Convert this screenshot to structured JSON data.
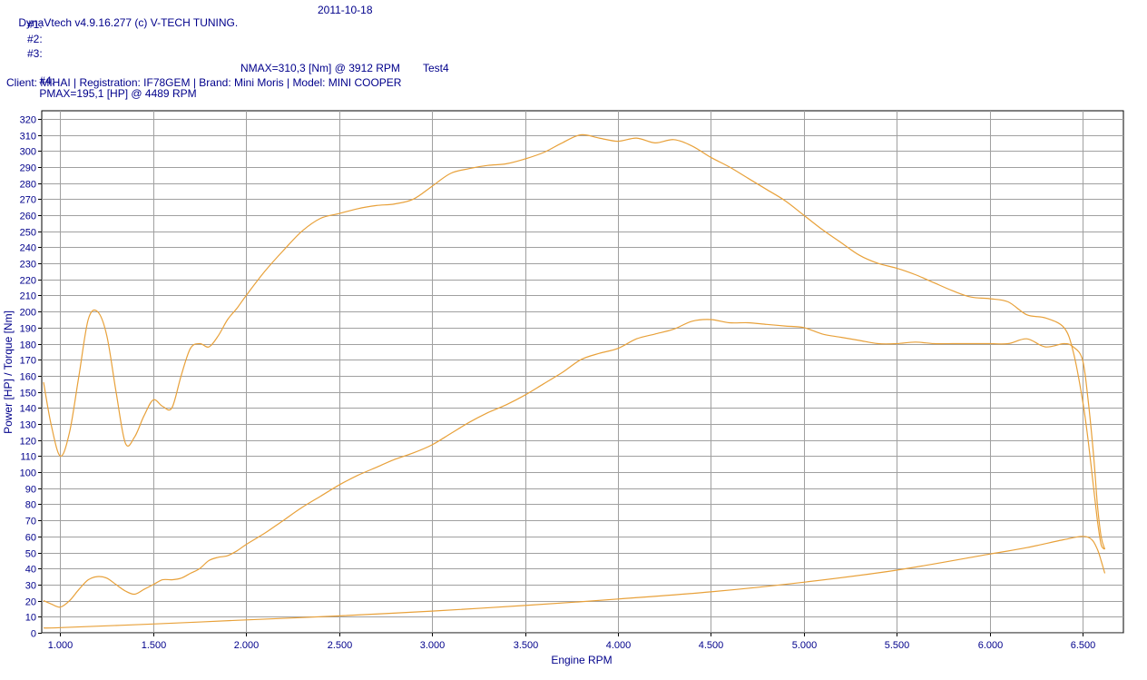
{
  "header": {
    "app_title": "DynaVtech v4.9.16.277 (c) V-TECH TUNING.",
    "date": "2011-10-18",
    "run1": "#1:",
    "run2": "#2:",
    "run3": "#3:",
    "run4_label": "#4:",
    "run4_pmax": "PMAX=195,1 [HP] @ 4489 RPM",
    "run4_nmax": "NMAX=310,3 [Nm] @ 3912 RPM",
    "run4_test": "Test4",
    "client_line": "Client: MIHAI | Registration: IF78GEM | Brand: Mini Moris | Model: MINI COOPER"
  },
  "chart_data": {
    "type": "line",
    "xlabel": "Engine RPM",
    "ylabel": "Power [HP] / Torque [Nm]",
    "xlim": [
      900,
      6720
    ],
    "ylim": [
      0,
      325
    ],
    "x_ticks": [
      1000,
      1500,
      2000,
      2500,
      3000,
      3500,
      4000,
      4500,
      5000,
      5500,
      6000,
      6500
    ],
    "x_tick_labels": [
      "1.000",
      "1.500",
      "2.000",
      "2.500",
      "3.000",
      "3.500",
      "4.000",
      "4.500",
      "5.000",
      "5.500",
      "6.000",
      "6.500"
    ],
    "y_ticks": [
      0,
      10,
      20,
      30,
      40,
      50,
      60,
      70,
      80,
      90,
      100,
      110,
      120,
      130,
      140,
      150,
      160,
      170,
      180,
      190,
      200,
      210,
      220,
      230,
      240,
      250,
      260,
      270,
      280,
      290,
      300,
      310,
      320
    ],
    "grid": true,
    "line_color": "#e8a13a",
    "series": [
      {
        "x": [
          910,
          950,
          1000,
          1050,
          1100,
          1150,
          1200,
          1250,
          1300,
          1350,
          1400,
          1450,
          1500,
          1550,
          1600,
          1650,
          1700,
          1750,
          1800,
          1850,
          1900,
          1950,
          2000,
          2100,
          2200,
          2300,
          2400,
          2500,
          2600,
          2700,
          2800,
          2900,
          3000,
          3100,
          3200,
          3300,
          3400,
          3500,
          3600,
          3700,
          3800,
          3900,
          4000,
          4100,
          4200,
          4300,
          4400,
          4500,
          4600,
          4700,
          4800,
          4900,
          5000,
          5100,
          5200,
          5300,
          5400,
          5500,
          5600,
          5700,
          5800,
          5900,
          6000,
          6100,
          6200,
          6300,
          6400,
          6450,
          6500,
          6530,
          6560,
          6580,
          6600,
          6620
        ],
        "values": [
          156,
          130,
          110,
          125,
          160,
          195,
          200,
          185,
          150,
          118,
          122,
          135,
          145,
          141,
          140,
          160,
          177,
          180,
          178,
          185,
          195,
          202,
          210,
          225,
          238,
          250,
          258,
          261,
          264,
          266,
          267,
          270,
          278,
          286,
          289,
          291,
          292,
          295,
          299,
          305,
          310,
          308,
          306,
          308,
          305,
          307,
          303,
          296,
          290,
          283,
          276,
          269,
          260,
          251,
          243,
          235,
          230,
          227,
          223,
          218,
          213,
          209,
          208,
          206,
          198,
          196,
          190,
          175,
          145,
          120,
          90,
          70,
          55,
          52
        ]
      },
      {
        "x": [
          910,
          950,
          1000,
          1050,
          1100,
          1150,
          1200,
          1250,
          1300,
          1350,
          1400,
          1450,
          1500,
          1550,
          1600,
          1650,
          1700,
          1750,
          1800,
          1850,
          1900,
          1950,
          2000,
          2100,
          2200,
          2300,
          2400,
          2500,
          2600,
          2700,
          2800,
          2900,
          3000,
          3100,
          3200,
          3300,
          3400,
          3500,
          3600,
          3700,
          3800,
          3900,
          4000,
          4100,
          4200,
          4300,
          4400,
          4500,
          4600,
          4700,
          4800,
          4900,
          5000,
          5100,
          5200,
          5300,
          5400,
          5500,
          5600,
          5700,
          5800,
          5900,
          6000,
          6100,
          6200,
          6300,
          6400,
          6450,
          6500,
          6530,
          6560,
          6580,
          6600,
          6620
        ],
        "values": [
          20,
          18,
          16,
          20,
          27,
          33,
          35,
          34,
          30,
          26,
          24,
          27,
          30,
          33,
          33,
          34,
          37,
          40,
          45,
          47,
          48,
          51,
          55,
          62,
          70,
          78,
          85,
          92,
          98,
          103,
          108,
          112,
          117,
          124,
          131,
          137,
          142,
          148,
          155,
          162,
          170,
          174,
          177,
          183,
          186,
          189,
          194,
          195,
          193,
          193,
          192,
          191,
          190,
          186,
          184,
          182,
          180,
          180,
          181,
          180,
          180,
          180,
          180,
          180,
          183,
          178,
          180,
          178,
          170,
          145,
          110,
          80,
          60,
          52
        ]
      },
      {
        "x": [
          910,
          1000,
          1500,
          2000,
          2500,
          3000,
          3500,
          4000,
          4500,
          5000,
          5500,
          6000,
          6200,
          6400,
          6500,
          6550,
          6580,
          6600,
          6620
        ],
        "values": [
          3,
          3.2,
          5.5,
          8,
          10.5,
          13.5,
          17,
          21,
          25.5,
          31.5,
          39,
          49,
          53,
          58,
          60,
          58,
          52,
          45,
          37
        ]
      }
    ]
  }
}
